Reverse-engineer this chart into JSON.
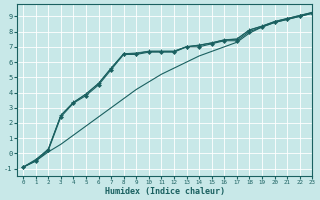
{
  "xlabel": "Humidex (Indice chaleur)",
  "bg_color": "#c8e8e8",
  "line_color": "#1a6060",
  "grid_color": "#ffffff",
  "xlim": [
    -0.5,
    23
  ],
  "ylim": [
    -1.5,
    9.8
  ],
  "xticks": [
    0,
    1,
    2,
    3,
    4,
    5,
    6,
    7,
    8,
    9,
    10,
    11,
    12,
    13,
    14,
    15,
    16,
    17,
    18,
    19,
    20,
    21,
    22,
    23
  ],
  "yticks": [
    -1,
    0,
    1,
    2,
    3,
    4,
    5,
    6,
    7,
    8,
    9
  ],
  "line1_x": [
    0,
    1,
    2,
    3,
    4,
    5,
    6,
    7,
    8,
    9,
    10,
    11,
    12,
    13,
    14,
    15,
    16,
    17,
    18,
    19,
    20,
    21,
    22,
    23
  ],
  "line1_y": [
    -0.9,
    -0.5,
    0.1,
    0.6,
    1.2,
    1.8,
    2.4,
    3.0,
    3.6,
    4.2,
    4.7,
    5.2,
    5.6,
    6.0,
    6.4,
    6.7,
    7.0,
    7.3,
    7.9,
    8.3,
    8.6,
    8.8,
    9.0,
    9.2
  ],
  "line2_x": [
    0,
    1,
    2,
    3,
    4,
    5,
    6,
    7,
    8,
    9,
    10,
    11,
    12,
    13,
    14,
    15,
    16,
    17,
    18,
    19,
    20,
    21,
    22,
    23
  ],
  "line2_y": [
    -0.9,
    -0.5,
    0.2,
    2.4,
    3.3,
    3.8,
    4.5,
    5.5,
    6.5,
    6.5,
    6.65,
    6.65,
    6.65,
    7.0,
    7.0,
    7.2,
    7.4,
    7.4,
    8.0,
    8.3,
    8.6,
    8.8,
    9.0,
    9.2
  ],
  "line3_x": [
    0,
    1,
    2,
    3,
    4,
    5,
    6,
    7,
    8,
    9,
    10,
    11,
    12,
    13,
    14,
    15,
    16,
    17,
    18,
    19,
    20,
    21,
    22,
    23
  ],
  "line3_y": [
    -0.9,
    -0.4,
    0.25,
    2.5,
    3.35,
    3.9,
    4.6,
    5.6,
    6.55,
    6.55,
    6.7,
    6.7,
    6.7,
    7.0,
    7.1,
    7.25,
    7.45,
    7.5,
    8.1,
    8.35,
    8.65,
    8.85,
    9.05,
    9.25
  ],
  "line4_x": [
    0,
    1,
    2,
    3,
    4,
    5,
    6,
    7,
    8,
    9,
    10,
    11,
    12,
    13,
    14,
    15,
    16,
    17,
    18,
    19,
    20,
    21,
    22,
    23
  ],
  "line4_y": [
    -0.9,
    -0.45,
    0.3,
    2.5,
    3.35,
    3.9,
    4.6,
    5.6,
    6.55,
    6.6,
    6.72,
    6.72,
    6.72,
    7.02,
    7.12,
    7.27,
    7.47,
    7.52,
    8.12,
    8.37,
    8.67,
    8.87,
    9.07,
    9.27
  ]
}
